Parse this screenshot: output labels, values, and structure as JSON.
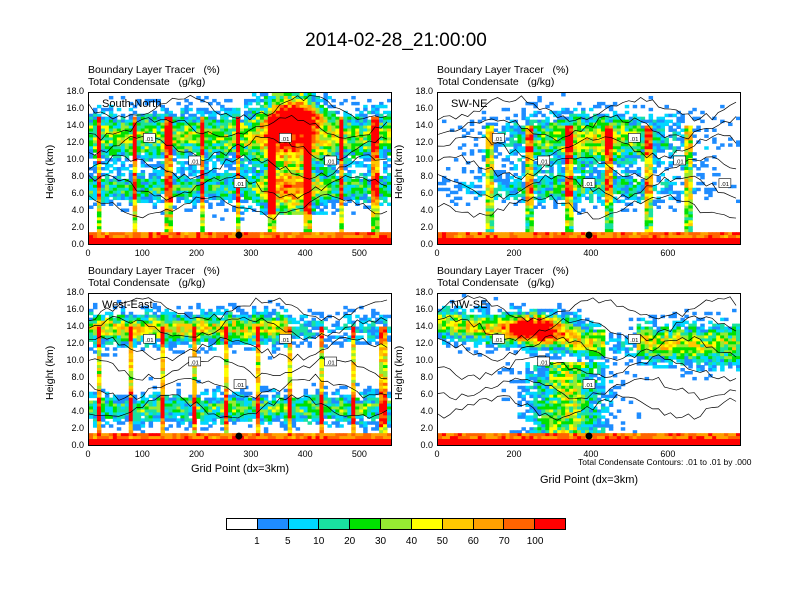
{
  "title": "2014-02-28_21:00:00",
  "panel_title_line1": "Boundary Layer Tracer   (%)",
  "panel_title_line2": "Total Condensate   (g/kg)",
  "ylabel": "Height (km)",
  "xlabel": "Grid Point (dx=3km)",
  "contour_note": "Total Condensate Contours: .01 to .01 by .000",
  "colorbar": {
    "colors": [
      "#ffffff",
      "#1e8cff",
      "#00d8ff",
      "#19e1a0",
      "#00e100",
      "#96eb32",
      "#ffff00",
      "#ffc800",
      "#ffa000",
      "#ff6400",
      "#ff0000"
    ],
    "labels": [
      "1",
      "5",
      "10",
      "20",
      "30",
      "40",
      "50",
      "60",
      "70",
      "100"
    ]
  },
  "chart_data": [
    {
      "type": "heatmap",
      "region": "South-North",
      "xlim": [
        0,
        560
      ],
      "ylim": [
        0,
        18
      ],
      "xticks": [
        "0",
        "100",
        "200",
        "300",
        "400",
        "500"
      ],
      "yticks": [
        "0.0",
        "2.0",
        "4.0",
        "6.0",
        "8.0",
        "10.0",
        "12.0",
        "14.0",
        "16.0",
        "18.0"
      ],
      "contour_labels": [
        ".01",
        ".01",
        ".01",
        ".01",
        ".01"
      ],
      "marker_x": 278
    },
    {
      "type": "heatmap",
      "region": "SW-NE",
      "xlim": [
        0,
        790
      ],
      "ylim": [
        0,
        18
      ],
      "xticks": [
        "0",
        "200",
        "400",
        "600"
      ],
      "yticks": [
        "0.0",
        "2.0",
        "4.0",
        "6.0",
        "8.0",
        "10.0",
        "12.0",
        "14.0",
        "16.0",
        "18.0"
      ],
      "contour_labels": [
        ".01",
        ".01",
        ".01",
        ".01",
        ".01",
        ".01"
      ],
      "marker_x": 395
    },
    {
      "type": "heatmap",
      "region": "West-East",
      "xlim": [
        0,
        560
      ],
      "ylim": [
        0,
        18
      ],
      "xticks": [
        "0",
        "100",
        "200",
        "300",
        "400",
        "500"
      ],
      "yticks": [
        "0.0",
        "2.0",
        "4.0",
        "6.0",
        "8.0",
        "10.0",
        "12.0",
        "14.0",
        "16.0",
        "18.0"
      ],
      "contour_labels": [
        ".01",
        ".01",
        ".01",
        ".01",
        ".01"
      ],
      "marker_x": 278
    },
    {
      "type": "heatmap",
      "region": "NW-SE",
      "xlim": [
        0,
        790
      ],
      "ylim": [
        0,
        18
      ],
      "xticks": [
        "0",
        "200",
        "400",
        "600"
      ],
      "yticks": [
        "0.0",
        "2.0",
        "4.0",
        "6.0",
        "8.0",
        "10.0",
        "12.0",
        "14.0",
        "16.0",
        "18.0"
      ],
      "contour_labels": [
        ".01",
        ".01",
        ".01",
        ".01"
      ],
      "marker_x": 395
    }
  ]
}
